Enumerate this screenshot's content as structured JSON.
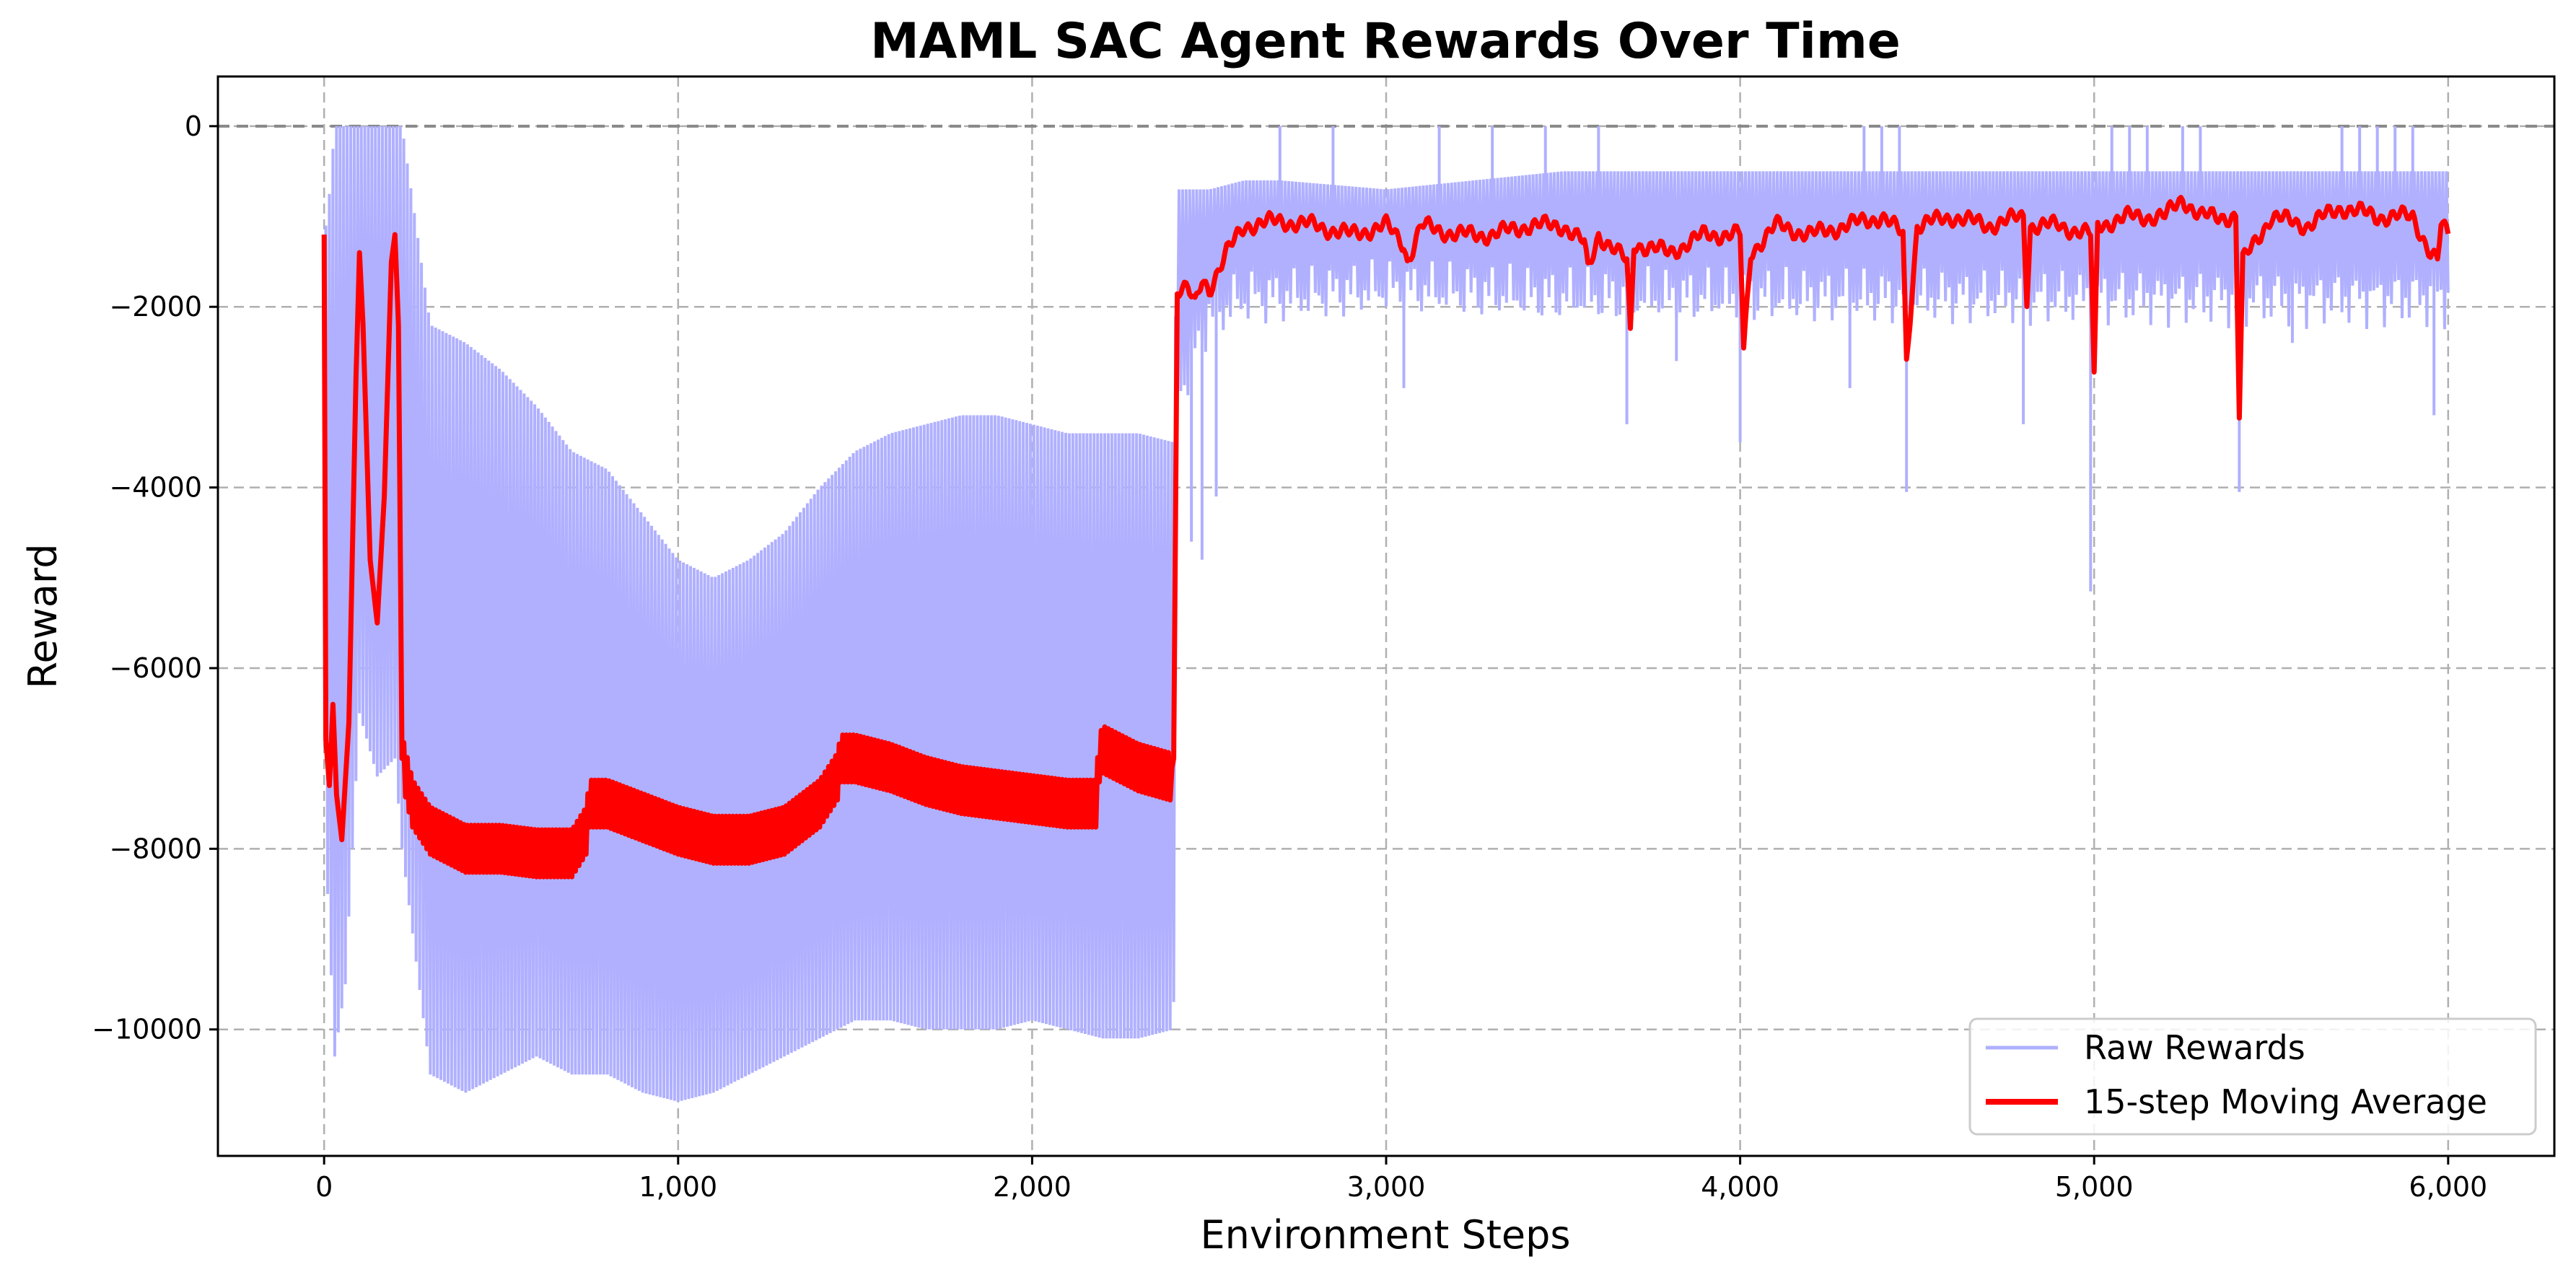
{
  "chart_data": {
    "type": "line",
    "title": "MAML SAC Agent Rewards Over Time",
    "xlabel": "Environment Steps",
    "ylabel": "Reward",
    "xlim": [
      -300,
      6300
    ],
    "ylim": [
      -11400,
      550
    ],
    "x_ticks": [
      0,
      1000,
      2000,
      3000,
      4000,
      5000,
      6000
    ],
    "x_tick_labels": [
      "0",
      "1,000",
      "2,000",
      "3,000",
      "4,000",
      "5,000",
      "6,000"
    ],
    "y_ticks": [
      0,
      -2000,
      -4000,
      -6000,
      -8000,
      -10000
    ],
    "y_tick_labels": [
      "0",
      "−2000",
      "−4000",
      "−6000",
      "−8000",
      "−10000"
    ],
    "grid": true,
    "reference_line": {
      "y": 0,
      "style": "dashed",
      "color": "#888888"
    },
    "legend": {
      "position": "bottom-right"
    },
    "series": [
      {
        "name": "Raw Rewards",
        "color": "#b0b0ff",
        "style": "oscillating",
        "x": [
          0,
          10,
          30,
          60,
          80,
          100,
          150,
          200,
          220,
          300,
          400,
          500,
          600,
          700,
          800,
          900,
          1000,
          1100,
          1200,
          1300,
          1400,
          1500,
          1600,
          1700,
          1800,
          1900,
          2000,
          2100,
          2200,
          2300,
          2400,
          2410,
          2500,
          2600,
          2700,
          3000,
          3500,
          4000,
          4500,
          5000,
          5500,
          6000
        ],
        "upper": [
          -1200,
          -1000,
          0,
          0,
          0,
          0,
          0,
          0,
          0,
          -2200,
          -2400,
          -2700,
          -3100,
          -3600,
          -3800,
          -4300,
          -4800,
          -5000,
          -4800,
          -4500,
          -4000,
          -3600,
          -3400,
          -3300,
          -3200,
          -3200,
          -3300,
          -3400,
          -3400,
          -3400,
          -3500,
          -700,
          -700,
          -600,
          -600,
          -700,
          -500,
          -500,
          -500,
          -500,
          -500,
          -500
        ],
        "lower": [
          -3500,
          -8500,
          -10300,
          -9500,
          -8000,
          -6500,
          -7200,
          -7000,
          -8000,
          -10500,
          -10700,
          -10500,
          -10300,
          -10500,
          -10500,
          -10700,
          -10800,
          -10700,
          -10500,
          -10300,
          -10100,
          -9900,
          -9900,
          -10000,
          -10000,
          -10000,
          -9900,
          -10000,
          -10100,
          -10100,
          -10000,
          -3000,
          -2100,
          -1900,
          -1900,
          -1800,
          -1900,
          -1900,
          -1900,
          -1900,
          -1900,
          -1900
        ],
        "spikes": [
          {
            "x": 2450,
            "y": -4600
          },
          {
            "x": 2480,
            "y": -4800
          },
          {
            "x": 2520,
            "y": -4100
          },
          {
            "x": 3050,
            "y": -2900
          },
          {
            "x": 3680,
            "y": -3300
          },
          {
            "x": 4000,
            "y": -3500
          },
          {
            "x": 4470,
            "y": -4050
          },
          {
            "x": 4800,
            "y": -3300
          },
          {
            "x": 4990,
            "y": -5150
          },
          {
            "x": 5410,
            "y": -4050
          },
          {
            "x": 5960,
            "y": -3200
          },
          {
            "x": 4310,
            "y": -2900
          },
          {
            "x": 3820,
            "y": -2600
          },
          {
            "x": 5560,
            "y": -2400
          }
        ]
      },
      {
        "name": "15-step Moving Average",
        "color": "#ff0000",
        "x": [
          0,
          5,
          15,
          25,
          35,
          50,
          70,
          90,
          100,
          110,
          130,
          150,
          170,
          190,
          200,
          210,
          220,
          250,
          300,
          400,
          500,
          600,
          700,
          740,
          750,
          800,
          900,
          1000,
          1100,
          1200,
          1300,
          1400,
          1450,
          1460,
          1500,
          1600,
          1700,
          1800,
          1900,
          2000,
          2100,
          2180,
          2190,
          2200,
          2300,
          2390,
          2400,
          2410,
          2440,
          2460,
          2480,
          2500,
          2550,
          2600,
          2700,
          2800,
          2900,
          3000,
          3050,
          3060,
          3100,
          3200,
          3300,
          3400,
          3500,
          3560,
          3570,
          3600,
          3680,
          3690,
          3700,
          3800,
          3900,
          4000,
          4010,
          4030,
          4100,
          4200,
          4300,
          4400,
          4460,
          4470,
          4490,
          4500,
          4600,
          4700,
          4800,
          4810,
          4820,
          4900,
          4990,
          5000,
          5010,
          5100,
          5200,
          5250,
          5300,
          5400,
          5410,
          5420,
          5500,
          5600,
          5700,
          5800,
          5900,
          5950,
          5970,
          5980,
          6000
        ],
        "y": [
          -1200,
          -6800,
          -7300,
          -6400,
          -7400,
          -7900,
          -6600,
          -2800,
          -1400,
          -2200,
          -4800,
          -5500,
          -4100,
          -1500,
          -1200,
          -2200,
          -7000,
          -7500,
          -7800,
          -8000,
          -8000,
          -8050,
          -8050,
          -7800,
          -7500,
          -7500,
          -7650,
          -7800,
          -7900,
          -7900,
          -7800,
          -7500,
          -7200,
          -7000,
          -7000,
          -7100,
          -7250,
          -7350,
          -7400,
          -7450,
          -7500,
          -7500,
          -7000,
          -6900,
          -7100,
          -7200,
          -7000,
          -1800,
          -1800,
          -2000,
          -1700,
          -1800,
          -1400,
          -1100,
          -1050,
          -1100,
          -1200,
          -1100,
          -1300,
          -1500,
          -1100,
          -1200,
          -1200,
          -1100,
          -1100,
          -1300,
          -1600,
          -1200,
          -1500,
          -2300,
          -1300,
          -1400,
          -1200,
          -1200,
          -2500,
          -1400,
          -1100,
          -1200,
          -1100,
          -1000,
          -1200,
          -2600,
          -1600,
          -1100,
          -1000,
          -1100,
          -1000,
          -1900,
          -1100,
          -1100,
          -1200,
          -2800,
          -1100,
          -1000,
          -1000,
          -800,
          -1000,
          -1000,
          -3200,
          -1500,
          -1000,
          -1100,
          -900,
          -1000,
          -1000,
          -1400,
          -1500,
          -1100,
          -1200
        ]
      }
    ]
  }
}
